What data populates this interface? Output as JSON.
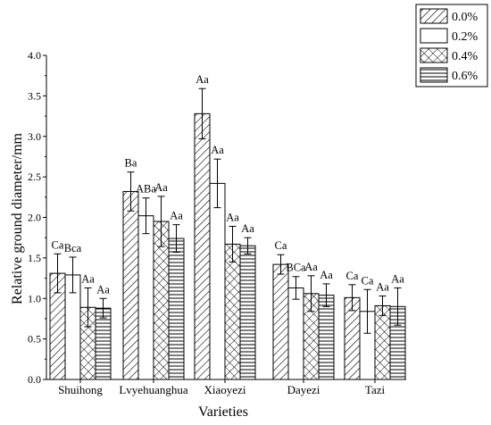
{
  "chart_data": {
    "type": "bar",
    "xlabel": "Varieties",
    "ylabel": "Relative ground diameter/mm",
    "ylim": [
      0,
      4
    ],
    "yticks": [
      "0.0",
      "0.5",
      "1.0",
      "1.5",
      "2.0",
      "2.5",
      "3.0",
      "3.5",
      "4.0"
    ],
    "grid": false,
    "legend_position": "top-right",
    "categories": [
      "Shuihong",
      "Lvyehuanghua",
      "Xiaoyezi",
      "Dayezi",
      "Tazi"
    ],
    "series": [
      {
        "name": "0.0%",
        "pattern": "diagonal-hatch",
        "values": [
          1.31,
          2.32,
          3.28,
          1.42,
          1.01
        ],
        "errors": [
          0.24,
          0.24,
          0.31,
          0.12,
          0.16
        ],
        "labels": [
          "Ca",
          "Ba",
          "Aa",
          "Ca",
          "Ca"
        ]
      },
      {
        "name": "0.2%",
        "pattern": "blank",
        "values": [
          1.29,
          2.02,
          2.42,
          1.13,
          0.84
        ],
        "errors": [
          0.22,
          0.22,
          0.3,
          0.14,
          0.27
        ],
        "labels": [
          "Bca",
          "ABa",
          "Aa",
          "BCa",
          "Ca"
        ]
      },
      {
        "name": "0.4%",
        "pattern": "crosshatch",
        "values": [
          0.89,
          1.95,
          1.67,
          1.06,
          0.91
        ],
        "errors": [
          0.24,
          0.31,
          0.22,
          0.22,
          0.12
        ],
        "labels": [
          "Aa",
          "Aa",
          "Aa",
          "Aa",
          "Aa"
        ]
      },
      {
        "name": "0.6%",
        "pattern": "horizontal-lines",
        "values": [
          0.88,
          1.74,
          1.65,
          1.04,
          0.9
        ],
        "errors": [
          0.12,
          0.17,
          0.1,
          0.14,
          0.23
        ],
        "labels": [
          "Aa",
          "Aa",
          "Aa",
          "Aa",
          "Aa"
        ]
      }
    ]
  }
}
